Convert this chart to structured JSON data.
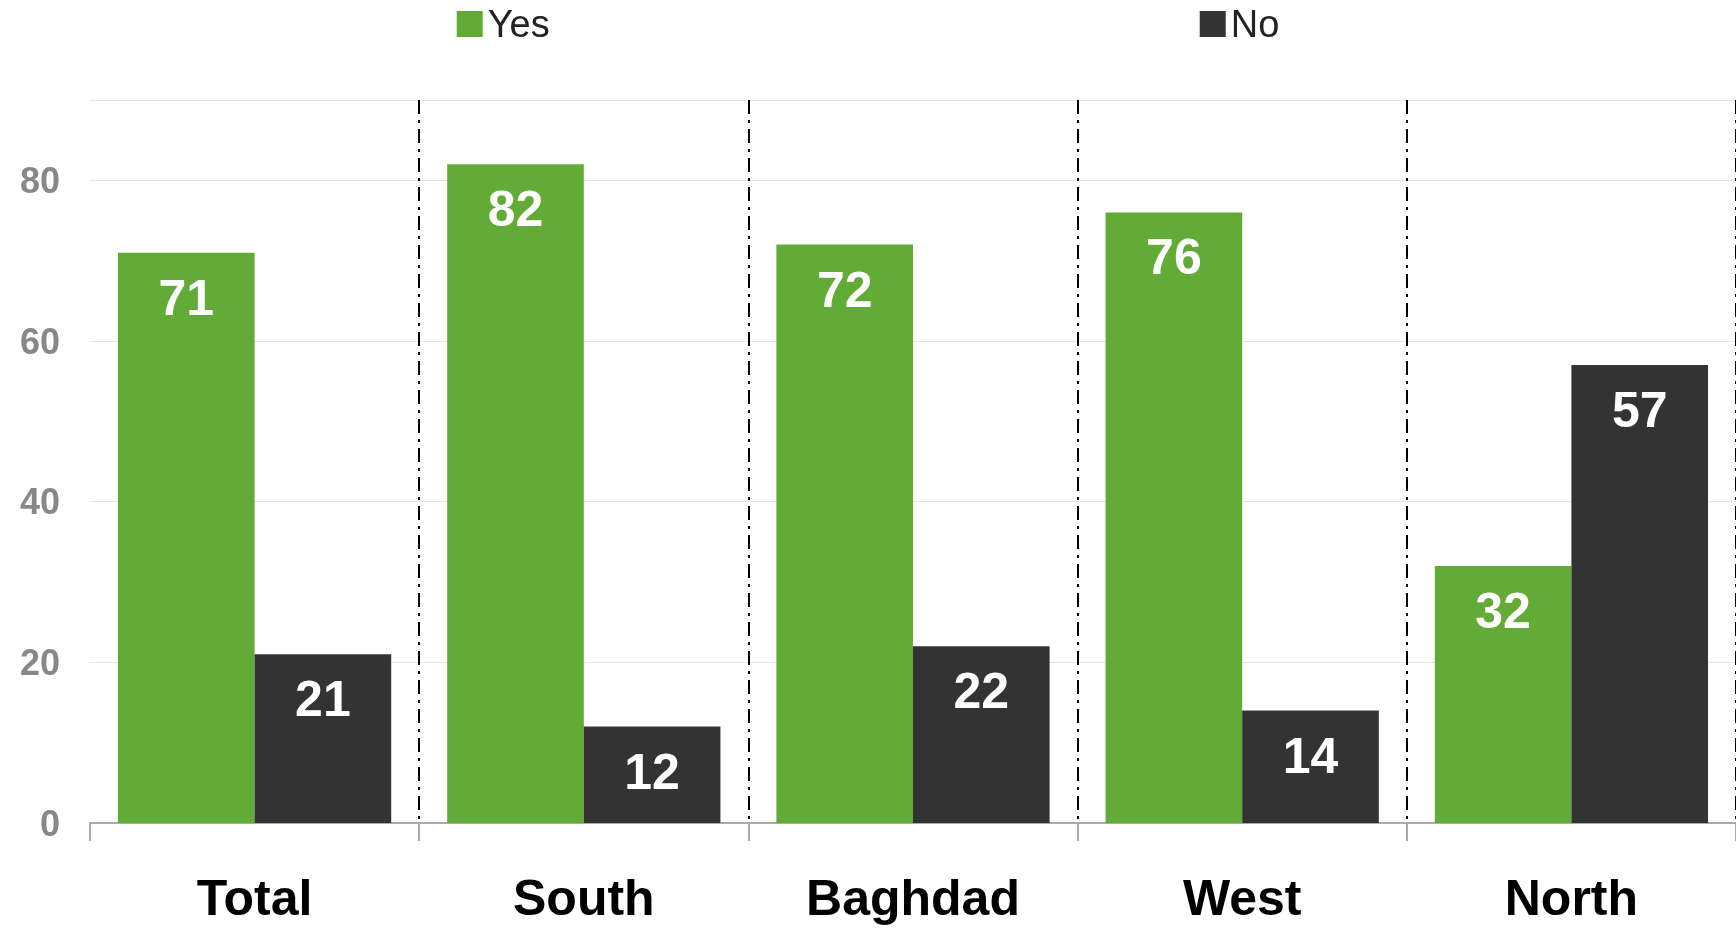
{
  "chart_data": {
    "type": "bar",
    "categories": [
      "Total",
      "South",
      "Baghdad",
      "West",
      "North"
    ],
    "series": [
      {
        "name": "Yes",
        "color": "#62ab37",
        "values": [
          71,
          82,
          72,
          76,
          32
        ]
      },
      {
        "name": "No",
        "color": "#333333",
        "values": [
          21,
          12,
          22,
          14,
          57
        ]
      }
    ],
    "ylim": [
      0,
      90
    ],
    "yticks": [
      0,
      20,
      40,
      60,
      80
    ],
    "grid": true,
    "legend": "top",
    "data_labels": true
  }
}
